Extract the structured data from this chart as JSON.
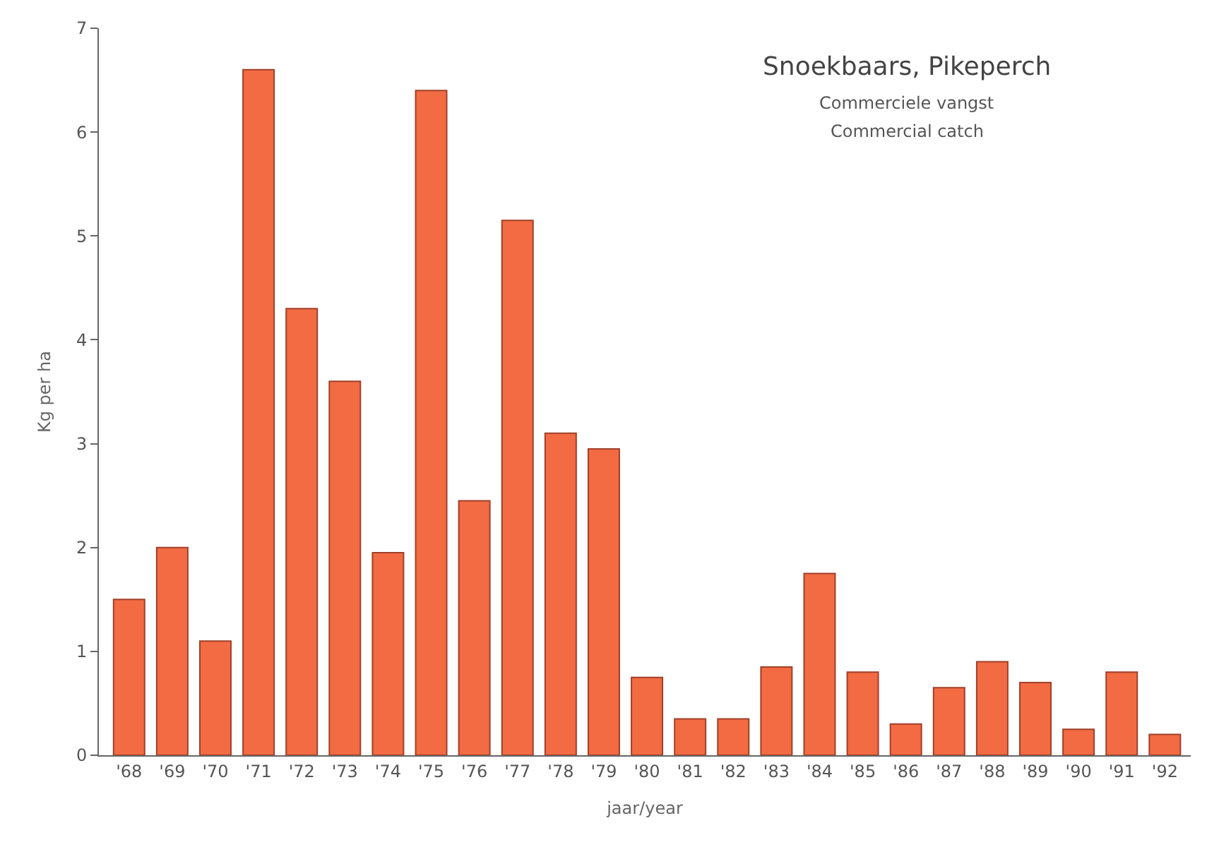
{
  "chart_data": {
    "type": "bar",
    "title": "Snoekbaars, Pikeperch",
    "annotations": [
      "Commerciele vangst",
      "Commercial catch"
    ],
    "xlabel": "jaar/year",
    "ylabel": "Kg per ha",
    "categories": [
      "'68",
      "'69",
      "'70",
      "'71",
      "'72",
      "'73",
      "'74",
      "'75",
      "'76",
      "'77",
      "'78",
      "'79",
      "'80",
      "'81",
      "'82",
      "'83",
      "'84",
      "'85",
      "'86",
      "'87",
      "'88",
      "'89",
      "'90",
      "'91",
      "'92"
    ],
    "values": [
      1.5,
      2.0,
      1.1,
      6.6,
      4.3,
      3.6,
      1.95,
      6.4,
      2.45,
      5.15,
      3.1,
      2.95,
      0.75,
      0.35,
      0.35,
      0.85,
      1.75,
      0.8,
      0.3,
      0.65,
      0.9,
      0.7,
      0.25,
      0.8,
      0.2
    ],
    "color": "#f26b43",
    "ylim": [
      0,
      7
    ],
    "yticks": [
      0,
      1,
      2,
      3,
      4,
      5,
      6,
      7
    ]
  }
}
